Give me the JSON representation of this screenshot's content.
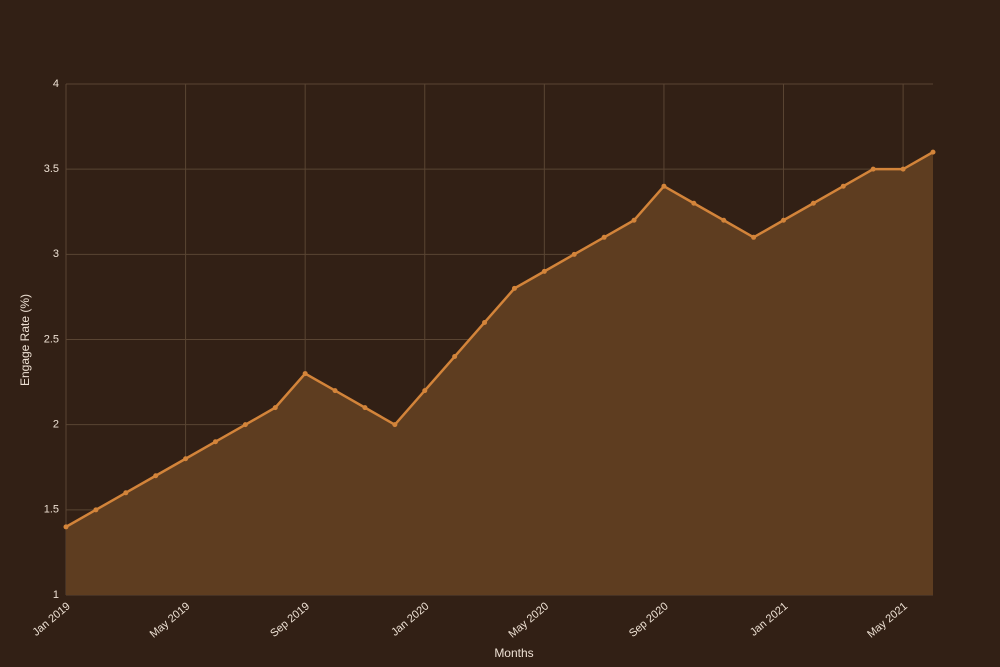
{
  "chart_data": {
    "type": "area",
    "x_label": "Months",
    "y_label": "Engage Rate (%)",
    "x": [
      "2019-01",
      "2019-02",
      "2019-03",
      "2019-04",
      "2019-05",
      "2019-06",
      "2019-07",
      "2019-08",
      "2019-09",
      "2019-10",
      "2019-11",
      "2019-12",
      "2020-01",
      "2020-02",
      "2020-03",
      "2020-04",
      "2020-05",
      "2020-06",
      "2020-07",
      "2020-08",
      "2020-09",
      "2020-10",
      "2020-11",
      "2020-12",
      "2021-01",
      "2021-02",
      "2021-03",
      "2021-04",
      "2021-05",
      "2021-06"
    ],
    "values": [
      1.4,
      1.5,
      1.6,
      1.7,
      1.8,
      1.9,
      2.0,
      2.1,
      2.3,
      2.2,
      2.1,
      2.0,
      2.2,
      2.4,
      2.6,
      2.8,
      2.9,
      3.0,
      3.1,
      3.2,
      3.4,
      3.3,
      3.2,
      3.1,
      3.2,
      3.3,
      3.4,
      3.5,
      3.5,
      3.6
    ],
    "color": "#d3843a",
    "fill_color": "#5e3d20",
    "xlim": [
      "2019-01",
      "2021-06"
    ],
    "xticks": [
      {
        "value": "2019-01",
        "label": "Jan 2019"
      },
      {
        "value": "2019-05",
        "label": "May 2019"
      },
      {
        "value": "2019-09",
        "label": "Sep 2019"
      },
      {
        "value": "2020-01",
        "label": "Jan 2020"
      },
      {
        "value": "2020-05",
        "label": "May 2020"
      },
      {
        "value": "2020-09",
        "label": "Sep 2020"
      },
      {
        "value": "2021-01",
        "label": "Jan 2021"
      },
      {
        "value": "2021-05",
        "label": "May 2021"
      }
    ],
    "ylim": [
      1,
      4
    ],
    "yticks": [
      1,
      1.5,
      2,
      2.5,
      3,
      3.5,
      4
    ],
    "grid": true
  }
}
